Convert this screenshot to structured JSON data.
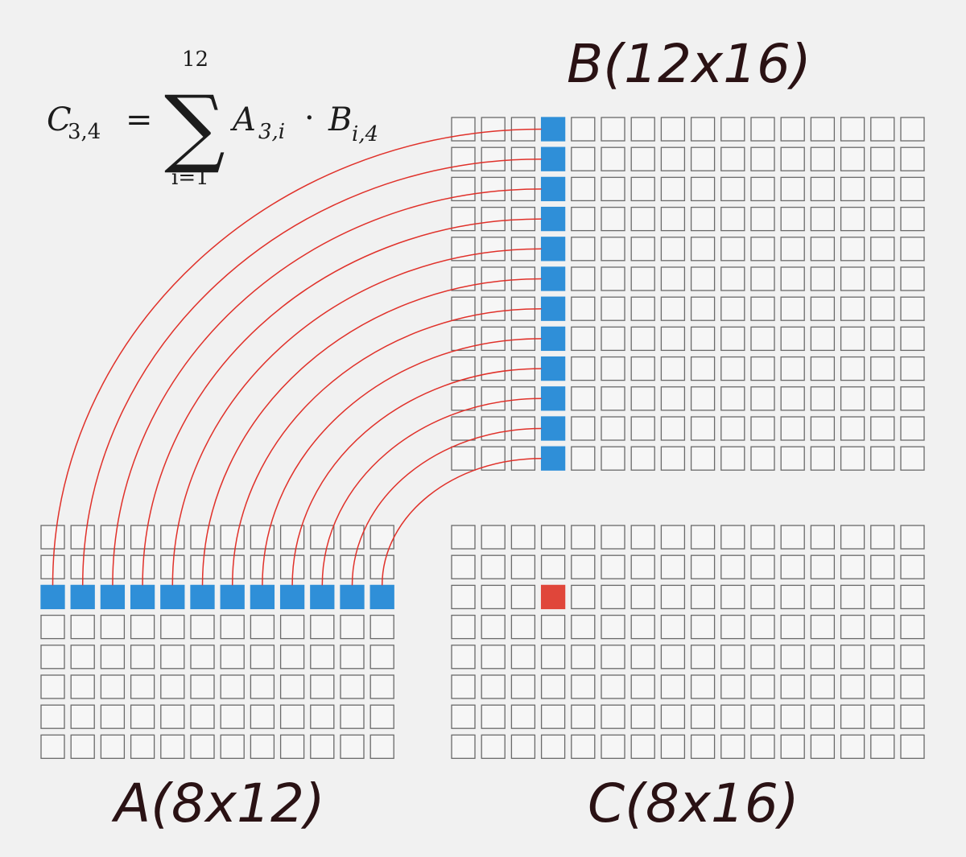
{
  "formula": {
    "lhs_symbol": "C",
    "lhs_sub": "3,4",
    "equals": "=",
    "sum_upper": "12",
    "sum_lower": "i=1",
    "sigma": "∑",
    "term_a": "A",
    "term_a_sub": "3,i",
    "dot": "·",
    "term_b": "B",
    "term_b_sub": "i,4"
  },
  "labels": {
    "matrix_a": "A(8x12)",
    "matrix_b": "B(12x16)",
    "matrix_c": "C(8x16)"
  },
  "matrices": {
    "A": {
      "rows": 8,
      "cols": 12,
      "highlight_row": 3
    },
    "B": {
      "rows": 12,
      "cols": 16,
      "highlight_col": 4
    },
    "C": {
      "rows": 8,
      "cols": 16,
      "highlight_cell": [
        3,
        4
      ]
    }
  },
  "colors": {
    "highlight_blue": "#2f8fd8",
    "highlight_red": "#e0463a",
    "connector": "#e0312a",
    "cell_border": "#6a6a6a",
    "background": "#f1f1f1"
  }
}
